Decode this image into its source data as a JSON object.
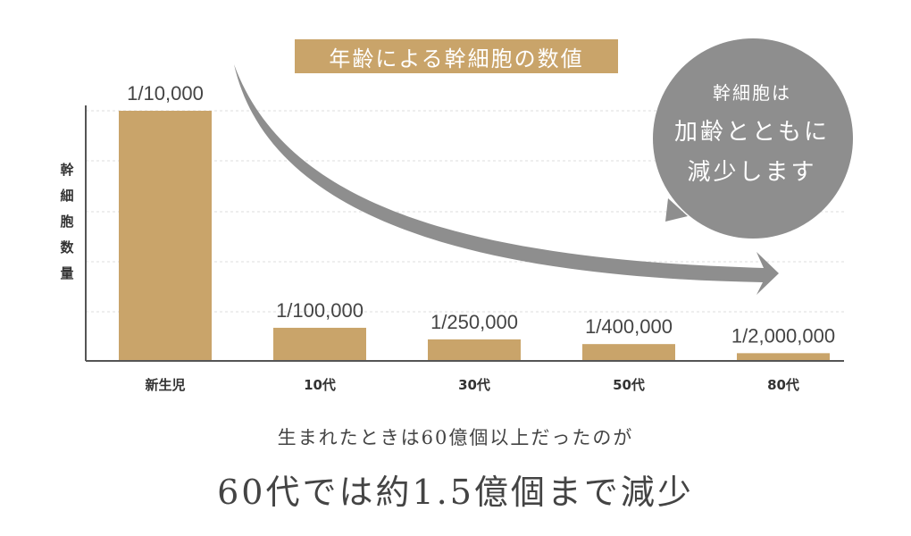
{
  "chart_data": {
    "type": "bar",
    "title": "年齢による幹細胞の数値",
    "ylabel": "幹細胞数量",
    "categories": [
      "新生児",
      "10代",
      "30代",
      "50代",
      "80代"
    ],
    "value_labels": [
      "1/10,000",
      "1/100,000",
      "1/250,000",
      "1/400,000",
      "1/2,000,000"
    ],
    "values": [
      0.0001,
      1e-05,
      4e-06,
      2.5e-06,
      5e-07
    ],
    "grid": true,
    "colors": {
      "bar": "#c9a46a",
      "arrow": "#8e8e8e",
      "grid": "#dcdcdc",
      "axis": "#555555"
    }
  },
  "callout": {
    "line1": "幹細胞は",
    "line2": "加齢とともに",
    "line3": "減少します",
    "color": "#8e8e8e"
  },
  "footer": {
    "line1": "生まれたときは60億個以上だったのが",
    "line2": "60代では約1.5億個まで減少"
  }
}
